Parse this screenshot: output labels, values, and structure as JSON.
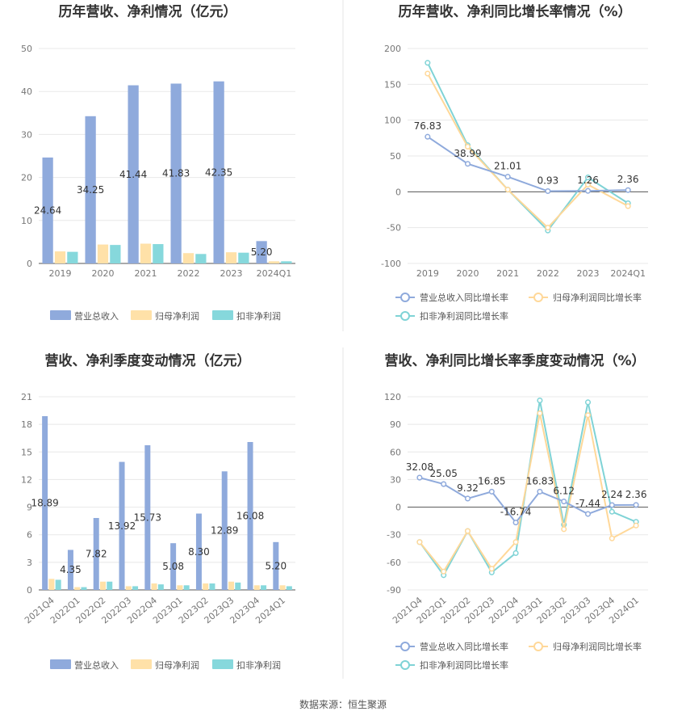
{
  "source": "数据来源：恒生聚源",
  "colors": {
    "rev": "#8faadc",
    "np": "#ffe1a8",
    "dnp": "#86d8dc",
    "revLine": "#8faadc",
    "npLine": "#ffd899",
    "dnpLine": "#7fd3d6"
  },
  "chart_data": [
    {
      "id": "annual",
      "type": "bar",
      "title": "历年营收、净利情况（亿元）",
      "categories": [
        "2019",
        "2020",
        "2021",
        "2022",
        "2023",
        "2024Q1"
      ],
      "ylim": [
        0,
        50
      ],
      "yticks": [
        0,
        10,
        20,
        30,
        40,
        50
      ],
      "grid": true,
      "legend": "bottom",
      "series": [
        {
          "name": "营业总收入",
          "values": [
            24.64,
            34.25,
            41.44,
            41.83,
            42.35,
            5.2
          ],
          "labels": [
            "24.64",
            "34.25",
            "41.44",
            "41.83",
            "42.35",
            "5.20"
          ]
        },
        {
          "name": "归母净利润",
          "values": [
            2.8,
            4.4,
            4.6,
            2.4,
            2.6,
            0.5
          ]
        },
        {
          "name": "扣非净利润",
          "values": [
            2.7,
            4.3,
            4.5,
            2.2,
            2.5,
            0.5
          ]
        }
      ]
    },
    {
      "id": "annual-growth",
      "type": "line",
      "title": "历年营收、净利同比增长率情况（%）",
      "categories": [
        "2019",
        "2020",
        "2021",
        "2022",
        "2023",
        "2024Q1"
      ],
      "ylim": [
        -100,
        200
      ],
      "yticks": [
        -100,
        -50,
        0,
        50,
        100,
        150,
        200
      ],
      "grid": true,
      "legend": "bottom",
      "series": [
        {
          "name": "营业总收入同比增长率",
          "values": [
            76.83,
            38.99,
            21.01,
            0.93,
            1.26,
            2.36
          ],
          "labels": [
            "76.83",
            "38.99",
            "21.01",
            "0.93",
            "1.26",
            "2.36"
          ]
        },
        {
          "name": "归母净利润同比增长率",
          "values": [
            165,
            63,
            3,
            -50,
            10,
            -20
          ]
        },
        {
          "name": "扣非净利润同比增长率",
          "values": [
            180,
            65,
            3,
            -54,
            20,
            -16
          ]
        }
      ]
    },
    {
      "id": "quarterly",
      "type": "bar",
      "title": "营收、净利季度变动情况（亿元）",
      "categories": [
        "2021Q4",
        "2022Q1",
        "2022Q2",
        "2022Q3",
        "2022Q4",
        "2023Q1",
        "2023Q2",
        "2023Q3",
        "2023Q4",
        "2024Q1"
      ],
      "ylim": [
        0,
        21
      ],
      "yticks": [
        0,
        3,
        6,
        9,
        12,
        15,
        18,
        21
      ],
      "grid": true,
      "legend": "bottom",
      "series": [
        {
          "name": "营业总收入",
          "values": [
            18.89,
            4.35,
            7.82,
            13.92,
            15.73,
            5.08,
            8.3,
            12.89,
            16.08,
            5.2
          ],
          "labels": [
            "18.89",
            "4.35",
            "7.82",
            "13.92",
            "15.73",
            "5.08",
            "8.30",
            "12.89",
            "16.08",
            "5.20"
          ]
        },
        {
          "name": "归母净利润",
          "values": [
            1.2,
            0.3,
            0.9,
            0.4,
            0.7,
            0.5,
            0.7,
            0.9,
            0.5,
            0.5
          ]
        },
        {
          "name": "扣非净利润",
          "values": [
            1.1,
            0.3,
            0.9,
            0.4,
            0.6,
            0.5,
            0.7,
            0.8,
            0.5,
            0.4
          ]
        }
      ]
    },
    {
      "id": "quarterly-growth",
      "type": "line",
      "title": "营收、净利同比增长率季度变动情况（%）",
      "categories": [
        "2021Q4",
        "2022Q1",
        "2022Q2",
        "2022Q3",
        "2022Q4",
        "2023Q1",
        "2023Q2",
        "2023Q3",
        "2023Q4",
        "2024Q1"
      ],
      "ylim": [
        -90,
        120
      ],
      "yticks": [
        -90,
        -60,
        -30,
        0,
        30,
        60,
        90,
        120
      ],
      "grid": true,
      "legend": "bottom",
      "series": [
        {
          "name": "营业总收入同比增长率",
          "values": [
            32.08,
            25.05,
            9.32,
            16.85,
            -16.74,
            16.83,
            6.12,
            -7.44,
            2.24,
            2.36
          ],
          "labels": [
            "32.08",
            "25.05",
            "9.32",
            "16.85",
            "-16.74",
            "16.83",
            "6.12",
            "-7.44",
            "2.24",
            "2.36"
          ]
        },
        {
          "name": "归母净利润同比增长率",
          "values": [
            -38,
            -70,
            -26,
            -67,
            -38,
            102,
            -24,
            100,
            -34,
            -20
          ]
        },
        {
          "name": "扣非净利润同比增长率",
          "values": [
            -38,
            -74,
            -26,
            -71,
            -50,
            116,
            -19,
            114,
            -5,
            -16
          ]
        }
      ]
    }
  ]
}
